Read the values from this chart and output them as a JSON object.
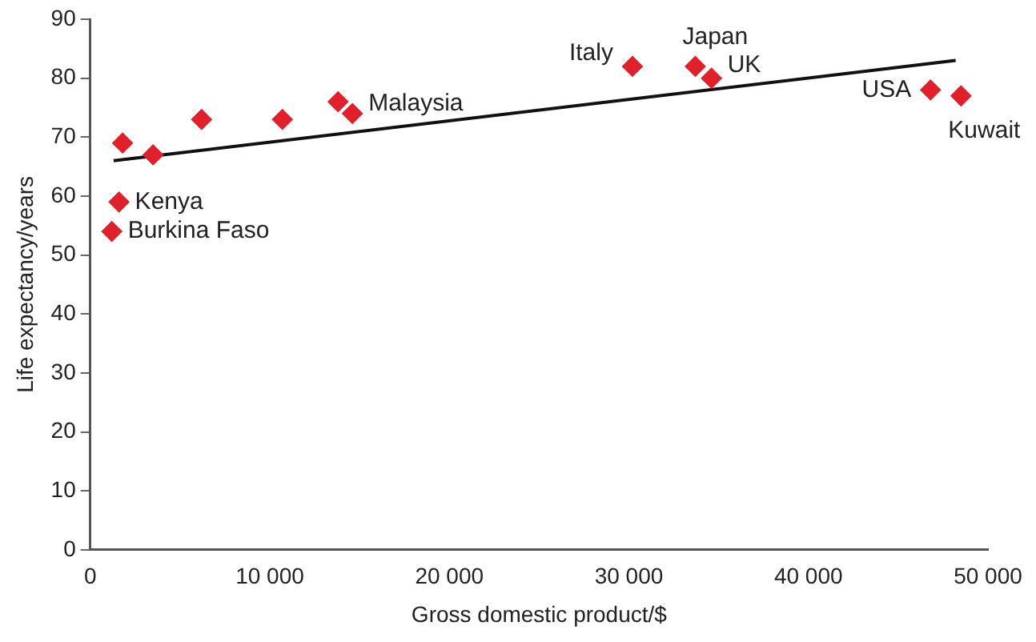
{
  "chart_data": {
    "type": "scatter",
    "xlabel": "Gross domestic product/$",
    "ylabel": "Life expectancy/years",
    "xlim": [
      0,
      50000
    ],
    "xticks": [
      {
        "value": 0,
        "label": "0"
      },
      {
        "value": 10000,
        "label": "10 000"
      },
      {
        "value": 20000,
        "label": "20 000"
      },
      {
        "value": 30000,
        "label": "30 000"
      },
      {
        "value": 40000,
        "label": "40 000"
      },
      {
        "value": 50000,
        "label": "50 000"
      }
    ],
    "ylim": [
      0,
      90
    ],
    "yticks": [
      0,
      10,
      20,
      30,
      40,
      50,
      60,
      70,
      80,
      90
    ],
    "grid": false,
    "legend": false,
    "marker": "diamond",
    "series": [
      {
        "type": "scatter",
        "color": "#e0202a",
        "x": [
          1800,
          3500,
          1600,
          1200,
          6200,
          10700,
          13800,
          14600,
          30200,
          33700,
          34600,
          46800,
          48500
        ],
        "values": [
          69,
          67,
          59,
          54,
          73,
          73,
          76,
          74,
          82,
          82,
          80,
          78,
          77
        ]
      },
      {
        "type": "line",
        "color": "#111111",
        "marker": "none",
        "line_style": "solid",
        "x": [
          1300,
          48200
        ],
        "values": [
          66,
          83
        ]
      }
    ],
    "annotations": [
      {
        "text": "Kenya",
        "x": 1600,
        "y": 59
      },
      {
        "text": "Burkina Faso",
        "x": 1200,
        "y": 54
      },
      {
        "text": "Malaysia",
        "x": 14600,
        "y": 74
      },
      {
        "text": "Italy",
        "x": 30200,
        "y": 82
      },
      {
        "text": "Japan",
        "x": 33700,
        "y": 82
      },
      {
        "text": "UK",
        "x": 34600,
        "y": 80
      },
      {
        "text": "USA",
        "x": 46800,
        "y": 78
      },
      {
        "text": "Kuwait",
        "x": 48500,
        "y": 77
      }
    ]
  }
}
